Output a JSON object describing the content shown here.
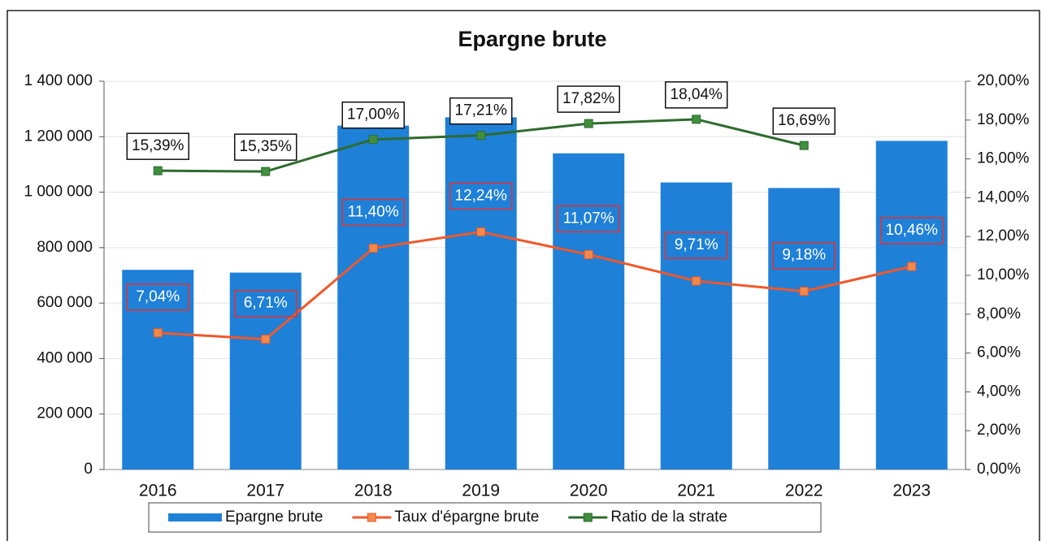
{
  "chart_data": {
    "type": "bar",
    "title": "Epargne brute",
    "categories": [
      "2016",
      "2017",
      "2018",
      "2019",
      "2020",
      "2021",
      "2022",
      "2023"
    ],
    "series": [
      {
        "name": "Epargne brute",
        "type": "bar",
        "axis": "y",
        "color": "#1f80d8",
        "values": [
          720000,
          710000,
          1240000,
          1270000,
          1140000,
          1035000,
          1015000,
          1185000
        ]
      },
      {
        "name": "Taux d'épargne brute",
        "type": "line",
        "axis": "y2",
        "color": "#f0582a",
        "marker_color": "#f08a4a",
        "label_style": "red-box",
        "values": [
          7.04,
          6.71,
          11.4,
          12.24,
          11.07,
          9.71,
          9.18,
          10.46
        ],
        "value_labels": [
          "7,04%",
          "6,71%",
          "11,40%",
          "12,24%",
          "11,07%",
          "9,71%",
          "9,18%",
          "10,46%"
        ]
      },
      {
        "name": "Ratio de la strate",
        "type": "line",
        "axis": "y2",
        "color": "#2e6b2e",
        "marker_color": "#3f8f3f",
        "label_style": "black-box",
        "values": [
          15.39,
          15.35,
          17.0,
          17.21,
          17.82,
          18.04,
          16.69,
          null
        ],
        "value_labels": [
          "15,39%",
          "15,35%",
          "17,00%",
          "17,21%",
          "17,82%",
          "18,04%",
          "16,69%",
          null
        ]
      }
    ],
    "ylim": [
      0,
      1400000
    ],
    "yticks": [
      0,
      {
        "value": 200000,
        "label": "200 000"
      },
      {
        "value": 400000,
        "label": "400 000"
      },
      {
        "value": 600000,
        "label": "600 000"
      },
      {
        "value": 800000,
        "label": "800 000"
      },
      {
        "value": 1000000,
        "label": "1 000 000"
      },
      {
        "value": 1200000,
        "label": "1 200 000"
      },
      {
        "value": 1400000,
        "label": "1 400 000"
      }
    ],
    "y2lim": [
      0,
      20
    ],
    "y2ticks": [
      {
        "value": 0,
        "label": "0,00%"
      },
      {
        "value": 2,
        "label": "2,00%"
      },
      {
        "value": 4,
        "label": "4,00%"
      },
      {
        "value": 6,
        "label": "6,00%"
      },
      {
        "value": 8,
        "label": "8,00%"
      },
      {
        "value": 10,
        "label": "10,00%"
      },
      {
        "value": 12,
        "label": "12,00%"
      },
      {
        "value": 14,
        "label": "14,00%"
      },
      {
        "value": 16,
        "label": "16,00%"
      },
      {
        "value": 18,
        "label": "18,00%"
      },
      {
        "value": 20,
        "label": "20,00%"
      }
    ],
    "grid": true,
    "legend": "bottom"
  }
}
